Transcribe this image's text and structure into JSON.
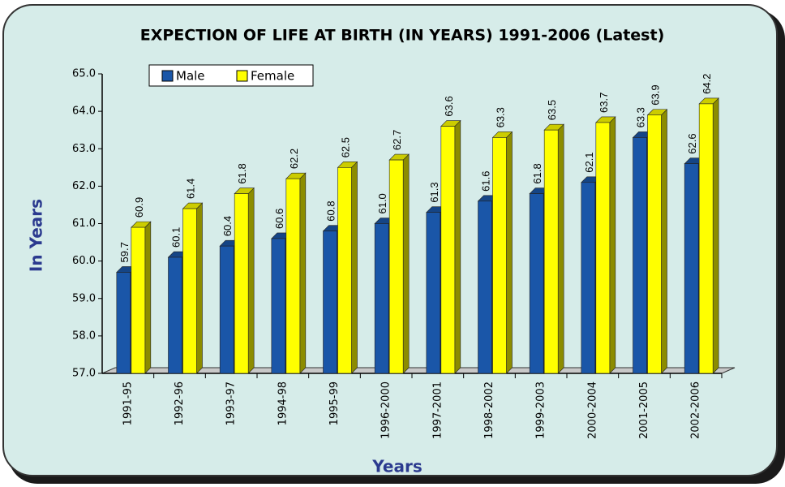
{
  "chart_data": {
    "type": "bar3d",
    "title": "EXPECTION OF LIFE AT BIRTH (IN YEARS) 1991-2006  (Latest)",
    "x_label": "Years",
    "y_label": "In Years",
    "categories": [
      "1991-95",
      "1992-96",
      "1993-97",
      "1994-98",
      "1995-99",
      "1996-2000",
      "1997-2001",
      "1998-2002",
      "1999-2003",
      "2000-2004",
      "2001-2005",
      "2002-2006"
    ],
    "series": [
      {
        "name": "Male",
        "color": "#1a56a8",
        "values": [
          59.7,
          60.1,
          60.4,
          60.6,
          60.8,
          61.0,
          61.3,
          61.6,
          61.8,
          62.1,
          63.3,
          62.6
        ],
        "value_labels": [
          "59.7",
          "60.1",
          "60.4",
          "60.6",
          "60.8",
          "61.0",
          "61.3",
          "61.6",
          "61.8",
          "62.1",
          "63.3",
          "62.6"
        ]
      },
      {
        "name": "Female",
        "color": "#ffff00",
        "values": [
          60.9,
          61.4,
          61.8,
          62.2,
          62.5,
          62.7,
          63.6,
          63.3,
          63.5,
          63.7,
          63.9,
          64.2
        ],
        "value_labels": [
          "60.9",
          "61.4",
          "61.8",
          "62.2",
          "62.5",
          "62.7",
          "63.6",
          "63.3",
          "63.5",
          "63.7",
          "63.9",
          "64.2"
        ]
      }
    ],
    "ylim": [
      57,
      65
    ],
    "yticks": [
      {
        "value": 57,
        "label": "57.0"
      },
      {
        "value": 58,
        "label": "58.0"
      },
      {
        "value": 59,
        "label": "59.0"
      },
      {
        "value": 60,
        "label": "60.0"
      },
      {
        "value": 61,
        "label": "61.0"
      },
      {
        "value": 62,
        "label": "62.0"
      },
      {
        "value": 63,
        "label": "63.0"
      },
      {
        "value": 64,
        "label": "64.0"
      },
      {
        "value": 65,
        "label": "65.0"
      }
    ],
    "grid": false,
    "legend": "top-left"
  }
}
